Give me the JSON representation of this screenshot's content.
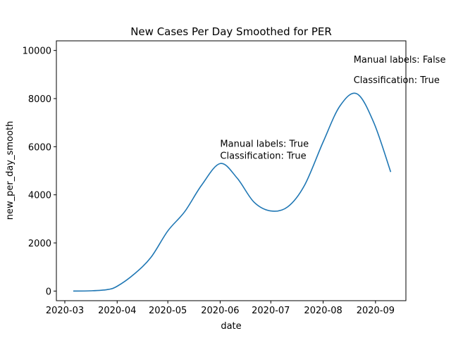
{
  "chart_data": {
    "type": "line",
    "title": "New Cases Per Day Smoothed for PER",
    "xlabel": "date",
    "ylabel": "new_per_day_smooth",
    "x_tick_labels": [
      "2020-03",
      "2020-04",
      "2020-05",
      "2020-06",
      "2020-07",
      "2020-08",
      "2020-09"
    ],
    "y_tick_labels": [
      "0",
      "2000",
      "4000",
      "6000",
      "8000",
      "10000"
    ],
    "y_ticks": [
      0,
      2000,
      4000,
      6000,
      8000,
      10000
    ],
    "ylim": [
      -400,
      10400
    ],
    "xlim": [
      "2020-02-25",
      "2020-09-19"
    ],
    "grid": false,
    "color": "#1f77b4",
    "series": [
      {
        "x": [
          "2020-03-06",
          "2020-03-16",
          "2020-03-26",
          "2020-04-01",
          "2020-04-11",
          "2020-04-21",
          "2020-05-01",
          "2020-05-11",
          "2020-05-21",
          "2020-06-01",
          "2020-06-11",
          "2020-06-21",
          "2020-07-01",
          "2020-07-11",
          "2020-07-21",
          "2020-08-01",
          "2020-08-11",
          "2020-08-21",
          "2020-08-31",
          "2020-09-10"
        ],
        "y": [
          0,
          10,
          60,
          200,
          700,
          1400,
          2500,
          3300,
          4400,
          5300,
          4700,
          3700,
          3330,
          3500,
          4400,
          6200,
          7700,
          8200,
          7000,
          4950
        ]
      }
    ],
    "annotations": [
      {
        "line1": "Manual labels: True",
        "line2": "Classification: True",
        "x": "2020-06-01",
        "y1": 6000,
        "y2": 5500
      },
      {
        "line1": "Manual labels: False",
        "line2": "Classification: True",
        "x": "2020-08-19",
        "y1": 9500,
        "y2": 8650
      }
    ]
  }
}
